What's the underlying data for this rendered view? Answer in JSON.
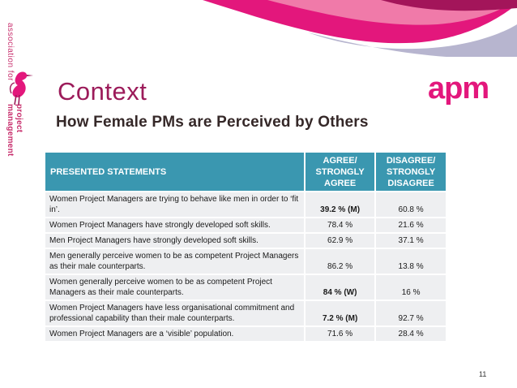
{
  "brand": {
    "vertical_text_1": "association for",
    "vertical_text_2": "project management",
    "logo_text": "apm"
  },
  "colors": {
    "accent_magenta": "#e3177c",
    "title_color": "#9c1b5a",
    "header_teal": "#3a97b0",
    "row_grey": "#eeeff1"
  },
  "slide": {
    "title": "Context",
    "subtitle": "How Female PMs are Perceived by Others",
    "page_number": "11"
  },
  "table": {
    "headers": {
      "statement": "PRESENTED STATEMENTS",
      "agree": [
        "AGREE/",
        "STRONGLY",
        "AGREE"
      ],
      "disagree": [
        "DISAGREE/",
        "STRONGLY",
        "DISAGREE"
      ]
    },
    "rows": [
      {
        "statement": "Women Project Managers are trying to behave like men in order to ‘fit in’.",
        "agree": "39.2 % (M)",
        "disagree": "60.8 %",
        "agree_bold": true
      },
      {
        "statement": "Women Project Managers have strongly developed soft skills.",
        "agree": "78.4 %",
        "disagree": "21.6 %",
        "agree_bold": false
      },
      {
        "statement": "Men Project Managers have strongly developed soft skills.",
        "agree": "62.9 %",
        "disagree": "37.1 %",
        "agree_bold": false
      },
      {
        "statement": "Men generally perceive women to be as competent Project Managers as their male counterparts.",
        "agree": "86.2 %",
        "disagree": "13.8 %",
        "agree_bold": false
      },
      {
        "statement": "Women generally perceive women to be as competent Project Managers as their male counterparts.",
        "agree": "84 % (W)",
        "disagree": "16 %",
        "agree_bold": true
      },
      {
        "statement": "Women Project Managers have less organisational commitment and professional capability than their male counterparts.",
        "agree": "7.2 % (M)",
        "disagree": "92.7 %",
        "agree_bold": true
      },
      {
        "statement": "Women Project Managers are a ‘visible’ population.",
        "agree": "71.6 %",
        "disagree": "28.4 %",
        "agree_bold": false
      }
    ]
  }
}
